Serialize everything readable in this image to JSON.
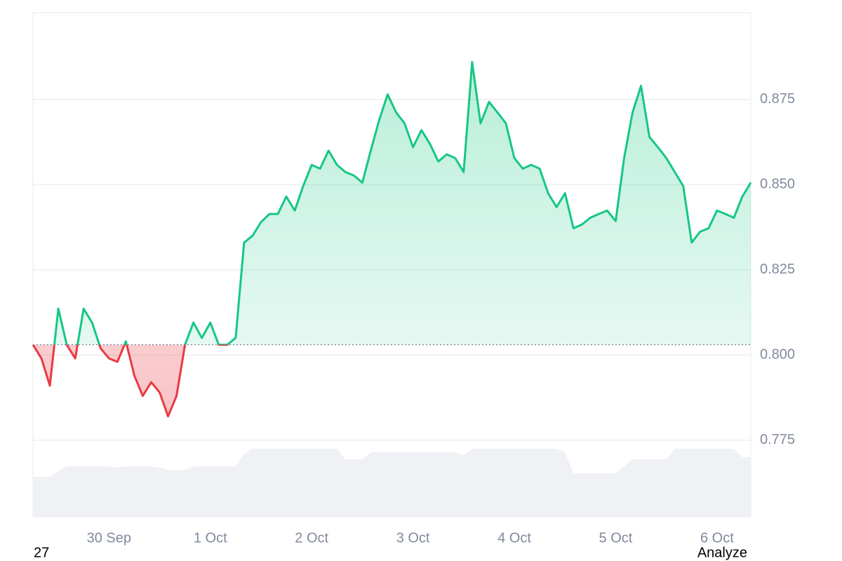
{
  "chart_data": {
    "type": "line",
    "categories": [
      null,
      null,
      null,
      null,
      null,
      null,
      null,
      null,
      null,
      "30 Sep",
      null,
      null,
      null,
      null,
      null,
      null,
      null,
      null,
      null,
      null,
      null,
      "1 Oct",
      null,
      null,
      null,
      null,
      null,
      null,
      null,
      null,
      null,
      null,
      null,
      "2 Oct",
      null,
      null,
      null,
      null,
      null,
      null,
      null,
      null,
      null,
      null,
      null,
      "3 Oct",
      null,
      null,
      null,
      null,
      null,
      null,
      null,
      null,
      null,
      null,
      null,
      "4 Oct",
      null,
      null,
      null,
      null,
      null,
      null,
      null,
      null,
      null,
      null,
      null,
      "5 Oct",
      null,
      null,
      null,
      null,
      null,
      null,
      null,
      null,
      null,
      null,
      null,
      "6 Oct",
      null,
      null,
      null,
      null
    ],
    "values": [
      0.803,
      0.799,
      0.791,
      0.8136,
      0.803,
      0.799,
      0.8136,
      0.8095,
      0.802,
      0.799,
      0.798,
      0.804,
      0.794,
      0.788,
      0.792,
      0.789,
      0.782,
      0.788,
      0.803,
      0.8095,
      0.805,
      0.8095,
      0.803,
      0.803,
      0.805,
      0.833,
      0.835,
      0.839,
      0.8414,
      0.8414,
      0.8465,
      0.8424,
      0.8496,
      0.8558,
      0.8547,
      0.86,
      0.8558,
      0.8537,
      0.8527,
      0.8506,
      0.86,
      0.869,
      0.8765,
      0.8712,
      0.868,
      0.861,
      0.866,
      0.862,
      0.8568,
      0.8589,
      0.8578,
      0.8537,
      0.886,
      0.868,
      0.8743,
      0.8712,
      0.868,
      0.8578,
      0.8547,
      0.8558,
      0.8547,
      0.8475,
      0.8434,
      0.8475,
      0.8372,
      0.8383,
      0.8403,
      0.8414,
      0.8424,
      0.8393,
      0.8578,
      0.8712,
      0.879,
      0.864,
      0.861,
      0.8578,
      0.8537,
      0.8496,
      0.833,
      0.8362,
      0.8372,
      0.8424,
      0.8414,
      0.8403,
      0.8465,
      0.8506
    ],
    "volume": [
      57,
      57,
      57,
      65,
      72,
      72,
      72,
      72,
      72,
      72,
      70,
      72,
      72,
      72,
      72,
      70,
      67,
      67,
      67,
      72,
      72,
      72,
      72,
      72,
      72,
      90,
      97,
      97,
      97,
      97,
      97,
      97,
      97,
      97,
      97,
      97,
      97,
      82,
      82,
      82,
      92,
      92,
      92,
      92,
      92,
      92,
      92,
      92,
      92,
      92,
      92,
      88,
      97,
      97,
      97,
      97,
      97,
      97,
      97,
      97,
      97,
      97,
      97,
      92,
      62,
      62,
      62,
      62,
      62,
      62,
      72,
      82,
      82,
      82,
      82,
      82,
      97,
      97,
      97,
      97,
      97,
      97,
      97,
      97,
      85,
      85
    ],
    "baseline": 0.803,
    "ylim": [
      0.7525,
      0.9005
    ],
    "yticks": [
      0.775,
      {
        "value": 0.8,
        "label": "0.800"
      },
      0.825,
      {
        "value": 0.85,
        "label": "0.850"
      },
      0.875
    ],
    "vlim": [
      0,
      120
    ],
    "grid": true,
    "up_color": "#16c784",
    "down_color": "#ea3943",
    "volume_color": "#eff1f5"
  },
  "footer": {
    "left": "27",
    "right": "Analyze"
  }
}
